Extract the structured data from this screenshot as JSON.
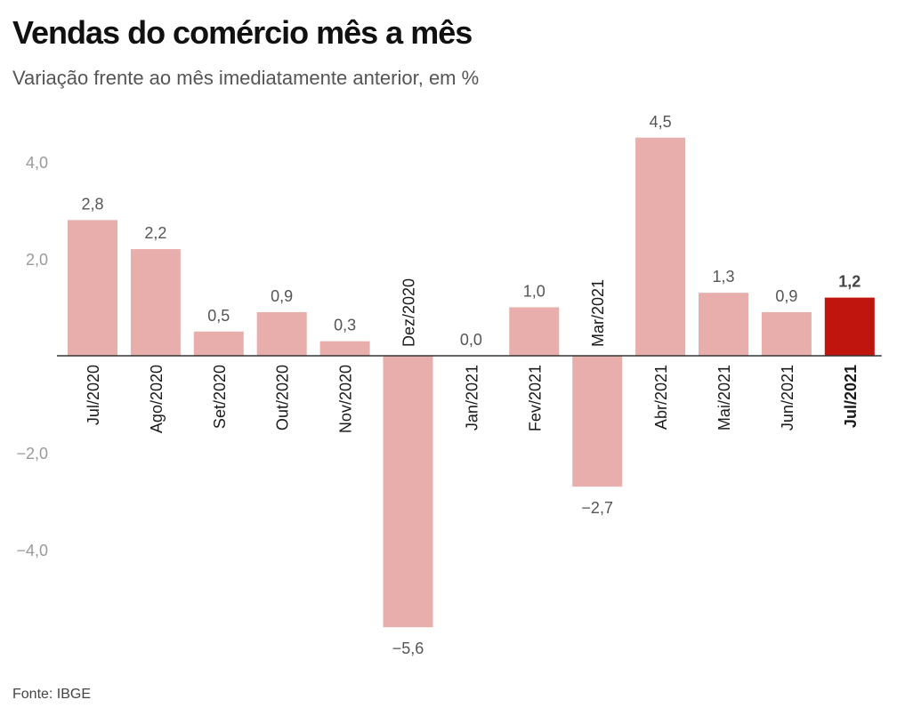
{
  "header": {
    "title": "Vendas do comércio mês a mês",
    "subtitle": "Variação frente ao mês imediatamente anterior, em %"
  },
  "footer": {
    "source": "Fonte: IBGE"
  },
  "colors": {
    "bar": "#e8aeab",
    "highlight": "#c0150f",
    "axis": "#333333"
  },
  "chart_data": {
    "type": "bar",
    "title": "Vendas do comércio mês a mês",
    "subtitle": "Variação frente ao mês imediatamente anterior, em %",
    "categories": [
      "Jul/2020",
      "Ago/2020",
      "Set/2020",
      "Out/2020",
      "Nov/2020",
      "Dez/2020",
      "Jan/2021",
      "Fev/2021",
      "Mar/2021",
      "Abr/2021",
      "Mai/2021",
      "Jun/2021",
      "Jul/2021"
    ],
    "values": [
      2.8,
      2.2,
      0.5,
      0.9,
      0.3,
      -5.6,
      0.0,
      1.0,
      -2.7,
      4.5,
      1.3,
      0.9,
      1.2
    ],
    "value_labels": [
      "2,8",
      "2,2",
      "0,5",
      "0,9",
      "0,3",
      "−5,6",
      "0,0",
      "1,0",
      "−2,7",
      "4,5",
      "1,3",
      "0,9",
      "1,2"
    ],
    "highlight_index": 12,
    "yticks": [
      4,
      2,
      -2,
      -4
    ],
    "ytick_labels": [
      "4,0",
      "2,0",
      "−2,0",
      "−4,0"
    ],
    "ylim": [
      -5.6,
      4.5
    ],
    "grid": false,
    "legend": "none"
  }
}
